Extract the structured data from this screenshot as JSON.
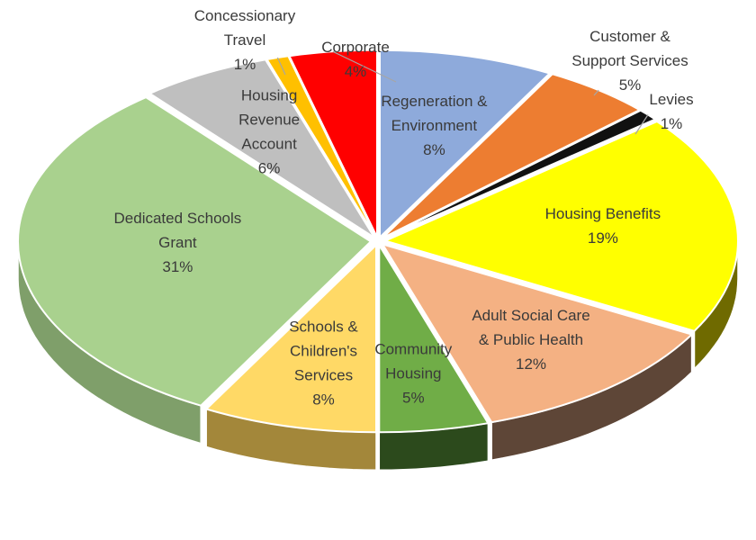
{
  "chart_data": {
    "type": "pie",
    "style": "3d-exploded",
    "title": "",
    "unit": "%",
    "series": [
      {
        "name": "Regeneration & Environment",
        "label_lines": [
          "Regeneration &",
          "Environment"
        ],
        "value": 8,
        "label": "8%",
        "color": "#8eaadb",
        "side_color": "#5b7db8"
      },
      {
        "name": "Customer & Support Services",
        "label_lines": [
          "Customer &",
          "Support Services"
        ],
        "value": 5,
        "label": "5%",
        "color": "#ed7d31",
        "side_color": "#a9541e"
      },
      {
        "name": "Levies",
        "label_lines": [
          "Levies"
        ],
        "value": 1,
        "label": "1%",
        "color": "#111111",
        "side_color": "#000000"
      },
      {
        "name": "Housing Benefits",
        "label_lines": [
          "Housing Benefits"
        ],
        "value": 19,
        "label": "19%",
        "color": "#ffff00",
        "side_color": "#6f6a00"
      },
      {
        "name": "Adult Social Care & Public Health",
        "label_lines": [
          "Adult Social Care",
          "& Public Health"
        ],
        "value": 12,
        "label": "12%",
        "color": "#f4b183",
        "side_color": "#5e4637"
      },
      {
        "name": "Community Housing",
        "label_lines": [
          "Community",
          "Housing"
        ],
        "value": 5,
        "label": "5%",
        "color": "#70ad47",
        "side_color": "#2c4a1c"
      },
      {
        "name": "Schools & Children's Services",
        "label_lines": [
          "Schools &",
          "Children's",
          "Services"
        ],
        "value": 8,
        "label": "8%",
        "color": "#ffd966",
        "side_color": "#a3873a"
      },
      {
        "name": "Dedicated Schools Grant",
        "label_lines": [
          "Dedicated Schools",
          "Grant"
        ],
        "value": 31,
        "label": "31%",
        "color": "#a9d18e",
        "side_color": "#7f9f6a"
      },
      {
        "name": "Housing Revenue Account",
        "label_lines": [
          "Housing",
          "Revenue",
          "Account"
        ],
        "value": 6,
        "label": "6%",
        "color": "#bfbfbf",
        "side_color": "#8a8a8a"
      },
      {
        "name": "Concessionary Travel",
        "label_lines": [
          "Concessionary",
          "Travel"
        ],
        "value": 1,
        "label": "1%",
        "color": "#ffc000",
        "side_color": "#b38600"
      },
      {
        "name": "Corporate",
        "label_lines": [
          "Corporate"
        ],
        "value": 4,
        "label": "4%",
        "color": "#ff0000",
        "side_color": "#b30000"
      }
    ]
  }
}
